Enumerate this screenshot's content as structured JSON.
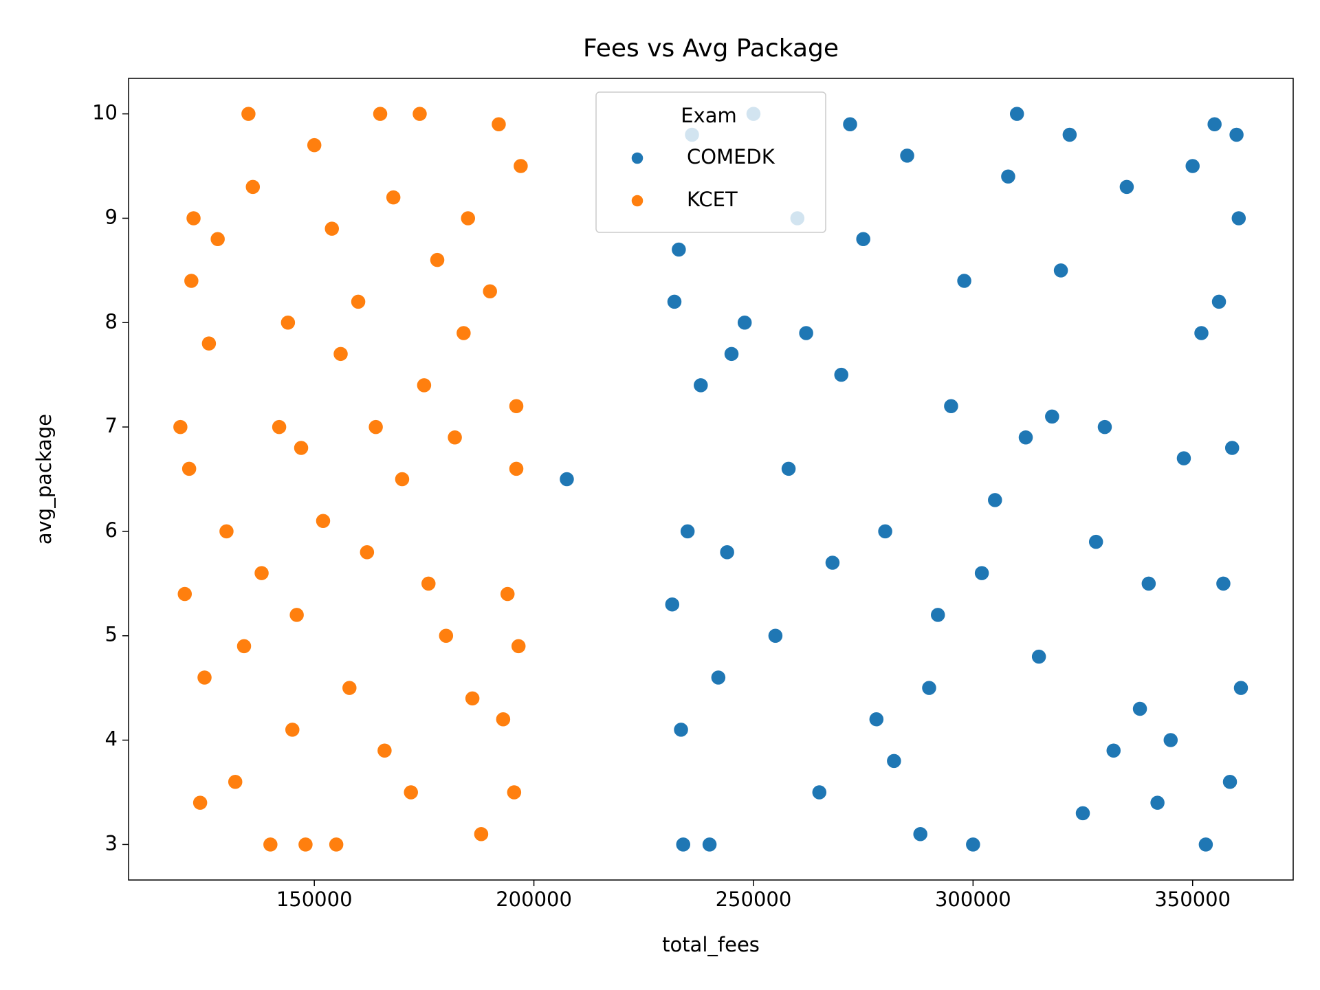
{
  "chart_data": {
    "type": "scatter",
    "title": "Fees vs Avg Package",
    "x_label": "total_fees",
    "y_label": "avg_package",
    "xlim": [
      107700,
      372900
    ],
    "ylim": [
      2.66,
      10.34
    ],
    "xticks": [
      150000,
      200000,
      250000,
      300000,
      350000
    ],
    "yticks": [
      3,
      4,
      5,
      6,
      7,
      8,
      9,
      10
    ],
    "grid": false,
    "legend_title": "Exam",
    "legend_position": "upper center",
    "series": [
      {
        "name": "COMEDK",
        "color": "#1f77b4",
        "x": [
          232000,
          233000,
          231500,
          233500,
          234000,
          235000,
          236000,
          240000,
          360000,
          360500,
          361000,
          359000,
          358500,
          357000,
          356000,
          355000,
          353000,
          207500,
          250000,
          260000,
          270000,
          280000,
          290000,
          300000,
          310000,
          320000,
          330000,
          340000,
          345000,
          255000,
          265000,
          275000,
          285000,
          295000,
          305000,
          315000,
          325000,
          335000,
          350000,
          348000,
          245000,
          242000,
          248000,
          258000,
          268000,
          278000,
          288000,
          298000,
          308000,
          318000,
          328000,
          338000,
          342000,
          352000,
          262000,
          272000,
          282000,
          292000,
          302000,
          312000,
          322000,
          332000,
          244000,
          238000
        ],
        "values": [
          8.2,
          8.7,
          5.3,
          4.1,
          3.0,
          6.0,
          9.8,
          3.0,
          9.8,
          9.0,
          4.5,
          6.8,
          3.6,
          5.5,
          8.2,
          9.9,
          3.0,
          6.5,
          10,
          9.0,
          7.5,
          6.0,
          4.5,
          3.0,
          10,
          8.5,
          7.0,
          5.5,
          4.0,
          5.0,
          3.5,
          8.8,
          9.6,
          7.2,
          6.3,
          4.8,
          3.3,
          9.3,
          9.5,
          6.7,
          7.7,
          4.6,
          8.0,
          6.6,
          5.7,
          4.2,
          3.1,
          8.4,
          9.4,
          7.1,
          5.9,
          4.3,
          3.4,
          7.9,
          7.9,
          9.9,
          3.8,
          5.2,
          5.6,
          6.9,
          9.8,
          3.9,
          5.8,
          7.4
        ]
      },
      {
        "name": "KCET",
        "color": "#ff7f0e",
        "x": [
          135000,
          140000,
          150000,
          160000,
          170000,
          180000,
          145000,
          155000,
          165000,
          175000,
          185000,
          190000,
          130000,
          128000,
          132000,
          188000,
          192000,
          193000,
          194000,
          197000,
          196000,
          196500,
          195500,
          196000,
          119500,
          120500,
          121500,
          122500,
          122000,
          124000,
          125000,
          126000,
          138000,
          142000,
          148000,
          152000,
          158000,
          162000,
          168000,
          172000,
          178000,
          182000,
          186000,
          144000,
          134000,
          156000,
          166000,
          176000,
          136000,
          146000,
          184000,
          174000,
          164000,
          154000,
          147000
        ],
        "values": [
          10,
          3.0,
          9.7,
          8.2,
          6.5,
          5.0,
          4.1,
          3.0,
          10,
          7.4,
          9.0,
          8.3,
          6.0,
          8.8,
          3.6,
          3.1,
          9.9,
          4.2,
          5.4,
          9.5,
          7.2,
          4.9,
          3.5,
          6.6,
          7.0,
          5.4,
          6.6,
          9.0,
          8.4,
          3.4,
          4.6,
          7.8,
          5.6,
          7.0,
          3.0,
          6.1,
          4.5,
          5.8,
          9.2,
          3.5,
          8.6,
          6.9,
          4.4,
          8.0,
          4.9,
          7.7,
          3.9,
          5.5,
          9.3,
          5.2,
          7.9,
          10,
          7.0,
          8.9,
          6.8
        ]
      }
    ]
  }
}
